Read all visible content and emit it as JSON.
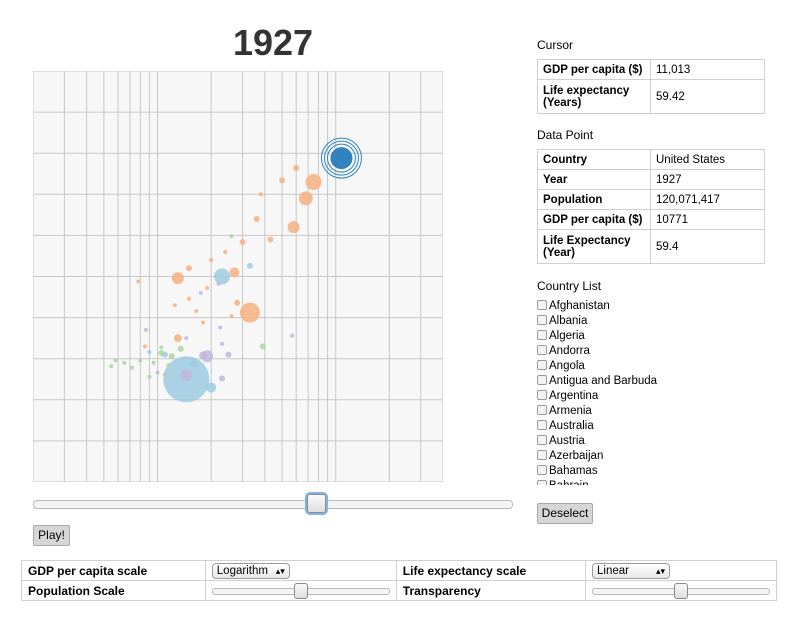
{
  "year_title": "1927",
  "play_button": "Play!",
  "deselect_button": "Deselect",
  "cursor": {
    "heading": "Cursor",
    "rows": [
      {
        "key": "GDP per capita ($)",
        "value": "11,013"
      },
      {
        "key": "Life expectancy (Years)",
        "value": "59.42"
      }
    ]
  },
  "data_point": {
    "heading": "Data Point",
    "rows": [
      {
        "key": "Country",
        "value": "United States"
      },
      {
        "key": "Year",
        "value": "1927"
      },
      {
        "key": "Population",
        "value": "120,071,417"
      },
      {
        "key": "GDP per capita ($)",
        "value": "10771"
      },
      {
        "key": "Life Expectancy (Year)",
        "value": "59.4"
      }
    ]
  },
  "country_list": {
    "heading": "Country List",
    "items": [
      "Afghanistan",
      "Albania",
      "Algeria",
      "Andorra",
      "Angola",
      "Antigua and Barbuda",
      "Argentina",
      "Armenia",
      "Australia",
      "Austria",
      "Azerbaijan",
      "Bahamas",
      "Bahrain"
    ]
  },
  "controls": {
    "gdp_scale_label": "GDP per capita scale",
    "gdp_scale_value": "Logarithm",
    "life_scale_label": "Life expectancy scale",
    "life_scale_value": "Linear",
    "population_scale_label": "Population Scale",
    "population_scale_level": 0.5,
    "transparency_label": "Transparency",
    "transparency_level": 0.5
  },
  "year_slider_level": 0.55,
  "colors": {
    "orange": "#f7b083",
    "blue": "#9ecae1",
    "green": "#a8d5a2",
    "purple": "#bdb8dc",
    "selected": "#3182bd",
    "gridline": "#c8c8c8",
    "plot_bg": "#f7f7f7"
  },
  "chart_data": {
    "type": "scatter",
    "x_scale": "log",
    "xlim": [
      200,
      40000
    ],
    "ylim": [
      20,
      70
    ],
    "grid": true,
    "selected": {
      "name": "United States",
      "x": 10771,
      "y": 59.4,
      "population": 120071417
    },
    "points": [
      {
        "x": 10771,
        "y": 59.4,
        "r": 11,
        "c": "selected"
      },
      {
        "x": 7500,
        "y": 56.5,
        "r": 8,
        "c": "orange"
      },
      {
        "x": 6800,
        "y": 54.5,
        "r": 7,
        "c": "orange"
      },
      {
        "x": 5800,
        "y": 51,
        "r": 6,
        "c": "orange"
      },
      {
        "x": 4300,
        "y": 49.5,
        "r": 3,
        "c": "orange"
      },
      {
        "x": 5000,
        "y": 56.7,
        "r": 3,
        "c": "orange"
      },
      {
        "x": 3800,
        "y": 55,
        "r": 2,
        "c": "orange"
      },
      {
        "x": 6000,
        "y": 58.2,
        "r": 3,
        "c": "orange"
      },
      {
        "x": 3600,
        "y": 52,
        "r": 3,
        "c": "orange"
      },
      {
        "x": 3000,
        "y": 49.2,
        "r": 3,
        "c": "orange"
      },
      {
        "x": 2400,
        "y": 48,
        "r": 2,
        "c": "orange"
      },
      {
        "x": 1500,
        "y": 46,
        "r": 3,
        "c": "orange"
      },
      {
        "x": 2700,
        "y": 45.5,
        "r": 5,
        "c": "orange"
      },
      {
        "x": 1300,
        "y": 44.8,
        "r": 6,
        "c": "orange"
      },
      {
        "x": 2000,
        "y": 47,
        "r": 2,
        "c": "orange"
      },
      {
        "x": 1900,
        "y": 43.6,
        "r": 2,
        "c": "orange"
      },
      {
        "x": 1500,
        "y": 42.3,
        "r": 2,
        "c": "orange"
      },
      {
        "x": 1250,
        "y": 41.5,
        "r": 2,
        "c": "orange"
      },
      {
        "x": 1650,
        "y": 40.8,
        "r": 2,
        "c": "orange"
      },
      {
        "x": 2800,
        "y": 41.8,
        "r": 3,
        "c": "orange"
      },
      {
        "x": 3300,
        "y": 40.6,
        "r": 10,
        "c": "orange"
      },
      {
        "x": 2600,
        "y": 40.2,
        "r": 2,
        "c": "orange"
      },
      {
        "x": 1800,
        "y": 39.4,
        "r": 2,
        "c": "orange"
      },
      {
        "x": 1300,
        "y": 37.5,
        "r": 4,
        "c": "orange"
      },
      {
        "x": 780,
        "y": 44.4,
        "r": 2,
        "c": "orange"
      },
      {
        "x": 850,
        "y": 36.5,
        "r": 2,
        "c": "orange"
      },
      {
        "x": 2300,
        "y": 45,
        "r": 8,
        "c": "blue"
      },
      {
        "x": 3300,
        "y": 46.3,
        "r": 3,
        "c": "blue"
      },
      {
        "x": 1450,
        "y": 32.5,
        "r": 23,
        "c": "blue"
      },
      {
        "x": 2000,
        "y": 31.5,
        "r": 5,
        "c": "blue"
      },
      {
        "x": 1600,
        "y": 34.5,
        "r": 4,
        "c": "blue"
      },
      {
        "x": 1100,
        "y": 35.5,
        "r": 3,
        "c": "blue"
      },
      {
        "x": 900,
        "y": 35.8,
        "r": 2,
        "c": "blue"
      },
      {
        "x": 1900,
        "y": 35.3,
        "r": 6,
        "c": "purple"
      },
      {
        "x": 1800,
        "y": 35.4,
        "r": 4,
        "c": "purple"
      },
      {
        "x": 1450,
        "y": 33,
        "r": 6,
        "c": "purple"
      },
      {
        "x": 2300,
        "y": 32.6,
        "r": 3,
        "c": "purple"
      },
      {
        "x": 2500,
        "y": 35.5,
        "r": 3,
        "c": "purple"
      },
      {
        "x": 1750,
        "y": 43,
        "r": 2,
        "c": "purple"
      },
      {
        "x": 2250,
        "y": 38.8,
        "r": 2,
        "c": "purple"
      },
      {
        "x": 2300,
        "y": 36.8,
        "r": 2,
        "c": "purple"
      },
      {
        "x": 5700,
        "y": 37.8,
        "r": 2,
        "c": "purple"
      },
      {
        "x": 1000,
        "y": 33.3,
        "r": 2,
        "c": "purple"
      },
      {
        "x": 860,
        "y": 38.5,
        "r": 2,
        "c": "purple"
      },
      {
        "x": 1450,
        "y": 37.5,
        "r": 2,
        "c": "purple"
      },
      {
        "x": 2200,
        "y": 44.1,
        "r": 2,
        "c": "purple"
      },
      {
        "x": 1350,
        "y": 36.2,
        "r": 3,
        "c": "green"
      },
      {
        "x": 1200,
        "y": 35.3,
        "r": 3,
        "c": "green"
      },
      {
        "x": 1050,
        "y": 35.7,
        "r": 3,
        "c": "green"
      },
      {
        "x": 950,
        "y": 34.5,
        "r": 2,
        "c": "green"
      },
      {
        "x": 800,
        "y": 34.8,
        "r": 2,
        "c": "green"
      },
      {
        "x": 650,
        "y": 34.5,
        "r": 2,
        "c": "green"
      },
      {
        "x": 580,
        "y": 34.8,
        "r": 2,
        "c": "green"
      },
      {
        "x": 550,
        "y": 34.1,
        "r": 2,
        "c": "green"
      },
      {
        "x": 720,
        "y": 33.9,
        "r": 2,
        "c": "green"
      },
      {
        "x": 1050,
        "y": 36.4,
        "r": 2,
        "c": "green"
      },
      {
        "x": 1100,
        "y": 33.1,
        "r": 2,
        "c": "green"
      },
      {
        "x": 3900,
        "y": 36.5,
        "r": 3,
        "c": "green"
      },
      {
        "x": 2600,
        "y": 49.9,
        "r": 2,
        "c": "green"
      },
      {
        "x": 1150,
        "y": 34.2,
        "r": 2,
        "c": "green"
      },
      {
        "x": 900,
        "y": 32.8,
        "r": 2,
        "c": "green"
      }
    ]
  }
}
